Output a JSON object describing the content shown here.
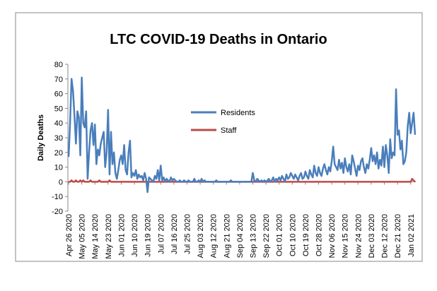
{
  "chart_data": {
    "type": "line",
    "title": "LTC COVID-19 Deaths in Ontario",
    "y_label": "Daily Deaths",
    "ylim": [
      -20,
      80
    ],
    "yticks": [
      -20,
      -10,
      0,
      10,
      20,
      30,
      40,
      50,
      60,
      70,
      80
    ],
    "grid": false,
    "categories": [
      "Apr 26 2020",
      null,
      null,
      null,
      null,
      null,
      null,
      null,
      null,
      "May 05 2020",
      null,
      null,
      null,
      null,
      null,
      null,
      null,
      null,
      "May 14 2020",
      null,
      null,
      null,
      null,
      null,
      null,
      null,
      null,
      "May 23 2020",
      null,
      null,
      null,
      null,
      null,
      null,
      null,
      null,
      "Jun 01 2020",
      null,
      null,
      null,
      null,
      null,
      null,
      null,
      null,
      "Jun 10 2020",
      null,
      null,
      null,
      null,
      null,
      null,
      null,
      null,
      "Jun 19 2020",
      null,
      null,
      null,
      null,
      null,
      null,
      null,
      null,
      "Jul 07 2020",
      null,
      null,
      null,
      null,
      null,
      null,
      null,
      null,
      "Jul 16 2020",
      null,
      null,
      null,
      null,
      null,
      null,
      null,
      null,
      "Jul 25 2020",
      null,
      null,
      null,
      null,
      null,
      null,
      null,
      null,
      "Aug 03 2020",
      null,
      null,
      null,
      null,
      null,
      null,
      null,
      null,
      "Aug 12 2020",
      null,
      null,
      null,
      null,
      null,
      null,
      null,
      null,
      "Aug 21 2020",
      null,
      null,
      null,
      null,
      null,
      null,
      null,
      null,
      "Sep 04 2020",
      null,
      null,
      null,
      null,
      null,
      null,
      null,
      null,
      "Sep 13 2020",
      null,
      null,
      null,
      null,
      null,
      null,
      null,
      null,
      "Sep 22 2020",
      null,
      null,
      null,
      null,
      null,
      null,
      null,
      null,
      "Oct 01 2020",
      null,
      null,
      null,
      null,
      null,
      null,
      null,
      null,
      "Oct 10 2020",
      null,
      null,
      null,
      null,
      null,
      null,
      null,
      null,
      "Oct 19 2020",
      null,
      null,
      null,
      null,
      null,
      null,
      null,
      null,
      "Oct 28 2020",
      null,
      null,
      null,
      null,
      null,
      null,
      null,
      null,
      "Nov 06 2020",
      null,
      null,
      null,
      null,
      null,
      null,
      null,
      null,
      "Nov 15 2020",
      null,
      null,
      null,
      null,
      null,
      null,
      null,
      null,
      "Nov 24 2020",
      null,
      null,
      null,
      null,
      null,
      null,
      null,
      null,
      "Dec 03 2020",
      null,
      null,
      null,
      null,
      null,
      null,
      null,
      null,
      "Dec 12 2020",
      null,
      null,
      null,
      null,
      null,
      null,
      null,
      null,
      "Dec 21 2020",
      null,
      null,
      null,
      null,
      null,
      null,
      null,
      null,
      "Jan 02 2021",
      null,
      null,
      null
    ],
    "series": [
      {
        "name": "Residents",
        "color": "#4a7ebb",
        "values": [
          17,
          40,
          70,
          62,
          45,
          26,
          48,
          44,
          18,
          71,
          40,
          37,
          48,
          2,
          20,
          35,
          40,
          25,
          39,
          12,
          22,
          18,
          26,
          30,
          34,
          10,
          20,
          49,
          5,
          34,
          12,
          20,
          6,
          2,
          8,
          15,
          18,
          12,
          25,
          8,
          5,
          20,
          28,
          3,
          6,
          4,
          8,
          2,
          5,
          3,
          4,
          1,
          6,
          2,
          -7,
          3,
          2,
          1,
          0,
          4,
          2,
          8,
          1,
          11,
          1,
          3,
          0,
          2,
          1,
          0,
          3,
          1,
          2,
          1,
          0,
          0,
          1,
          0,
          0,
          1,
          0,
          0,
          1,
          0,
          0,
          0,
          2,
          0,
          0,
          1,
          0,
          2,
          0,
          1,
          0,
          0,
          0,
          0,
          0,
          0,
          0,
          1,
          0,
          0,
          0,
          0,
          0,
          0,
          0,
          0,
          0,
          1,
          0,
          0,
          0,
          0,
          0,
          0,
          0,
          0,
          0,
          0,
          0,
          0,
          0,
          0,
          6,
          1,
          0,
          2,
          1,
          0,
          1,
          0,
          1,
          0,
          1,
          2,
          0,
          1,
          3,
          0,
          2,
          1,
          3,
          1,
          4,
          2,
          0,
          5,
          2,
          3,
          6,
          4,
          2,
          5,
          3,
          1,
          4,
          6,
          2,
          3,
          7,
          4,
          2,
          8,
          5,
          3,
          11,
          6,
          4,
          10,
          6,
          4,
          9,
          12,
          8,
          5,
          10,
          7,
          14,
          24,
          12,
          10,
          8,
          15,
          9,
          13,
          6,
          16,
          10,
          7,
          12,
          5,
          18,
          14,
          9,
          4,
          11,
          8,
          14,
          16,
          10,
          6,
          12,
          9,
          15,
          23,
          14,
          18,
          12,
          20,
          9,
          15,
          11,
          24,
          10,
          25,
          18,
          6,
          29,
          16,
          20,
          18,
          63,
          32,
          35,
          22,
          28,
          12,
          14,
          20,
          38,
          47,
          33,
          40,
          47,
          32
        ]
      },
      {
        "name": "Staff",
        "color": "#be4b48",
        "values": [
          0,
          0,
          1,
          0,
          0,
          1,
          0,
          0,
          1,
          0,
          1,
          0,
          0,
          0,
          0,
          1,
          0,
          0,
          0,
          0,
          0,
          1,
          0,
          0,
          0,
          0,
          0,
          0,
          1,
          0,
          0,
          0,
          0,
          0,
          0,
          0,
          0,
          0,
          0,
          0,
          0,
          0,
          0,
          0,
          0,
          0,
          0,
          0,
          0,
          0,
          0,
          0,
          0,
          0,
          0,
          0,
          0,
          0,
          0,
          0,
          0,
          0,
          0,
          0,
          0,
          0,
          0,
          0,
          0,
          0,
          0,
          0,
          0,
          0,
          0,
          0,
          0,
          0,
          0,
          0,
          0,
          0,
          0,
          0,
          0,
          0,
          0,
          0,
          0,
          0,
          0,
          0,
          0,
          0,
          0,
          0,
          0,
          0,
          0,
          0,
          0,
          0,
          0,
          0,
          0,
          0,
          0,
          0,
          0,
          0,
          0,
          0,
          0,
          0,
          0,
          0,
          0,
          0,
          0,
          0,
          0,
          0,
          0,
          0,
          0,
          0,
          0,
          0,
          0,
          0,
          0,
          0,
          0,
          0,
          0,
          0,
          0,
          0,
          0,
          0,
          0,
          0,
          0,
          0,
          0,
          0,
          0,
          0,
          0,
          0,
          0,
          0,
          0,
          0,
          0,
          0,
          0,
          0,
          0,
          0,
          0,
          0,
          0,
          0,
          0,
          0,
          0,
          0,
          0,
          0,
          0,
          0,
          0,
          0,
          0,
          0,
          0,
          0,
          0,
          0,
          0,
          0,
          0,
          0,
          0,
          0,
          0,
          0,
          0,
          0,
          0,
          0,
          0,
          0,
          0,
          0,
          0,
          0,
          0,
          0,
          0,
          0,
          0,
          0,
          0,
          0,
          0,
          0,
          0,
          0,
          0,
          0,
          0,
          0,
          0,
          0,
          0,
          0,
          0,
          0,
          0,
          0,
          0,
          0,
          0,
          0,
          0,
          0,
          0,
          0,
          0,
          0,
          0,
          0,
          0,
          2,
          1,
          0
        ]
      }
    ]
  }
}
